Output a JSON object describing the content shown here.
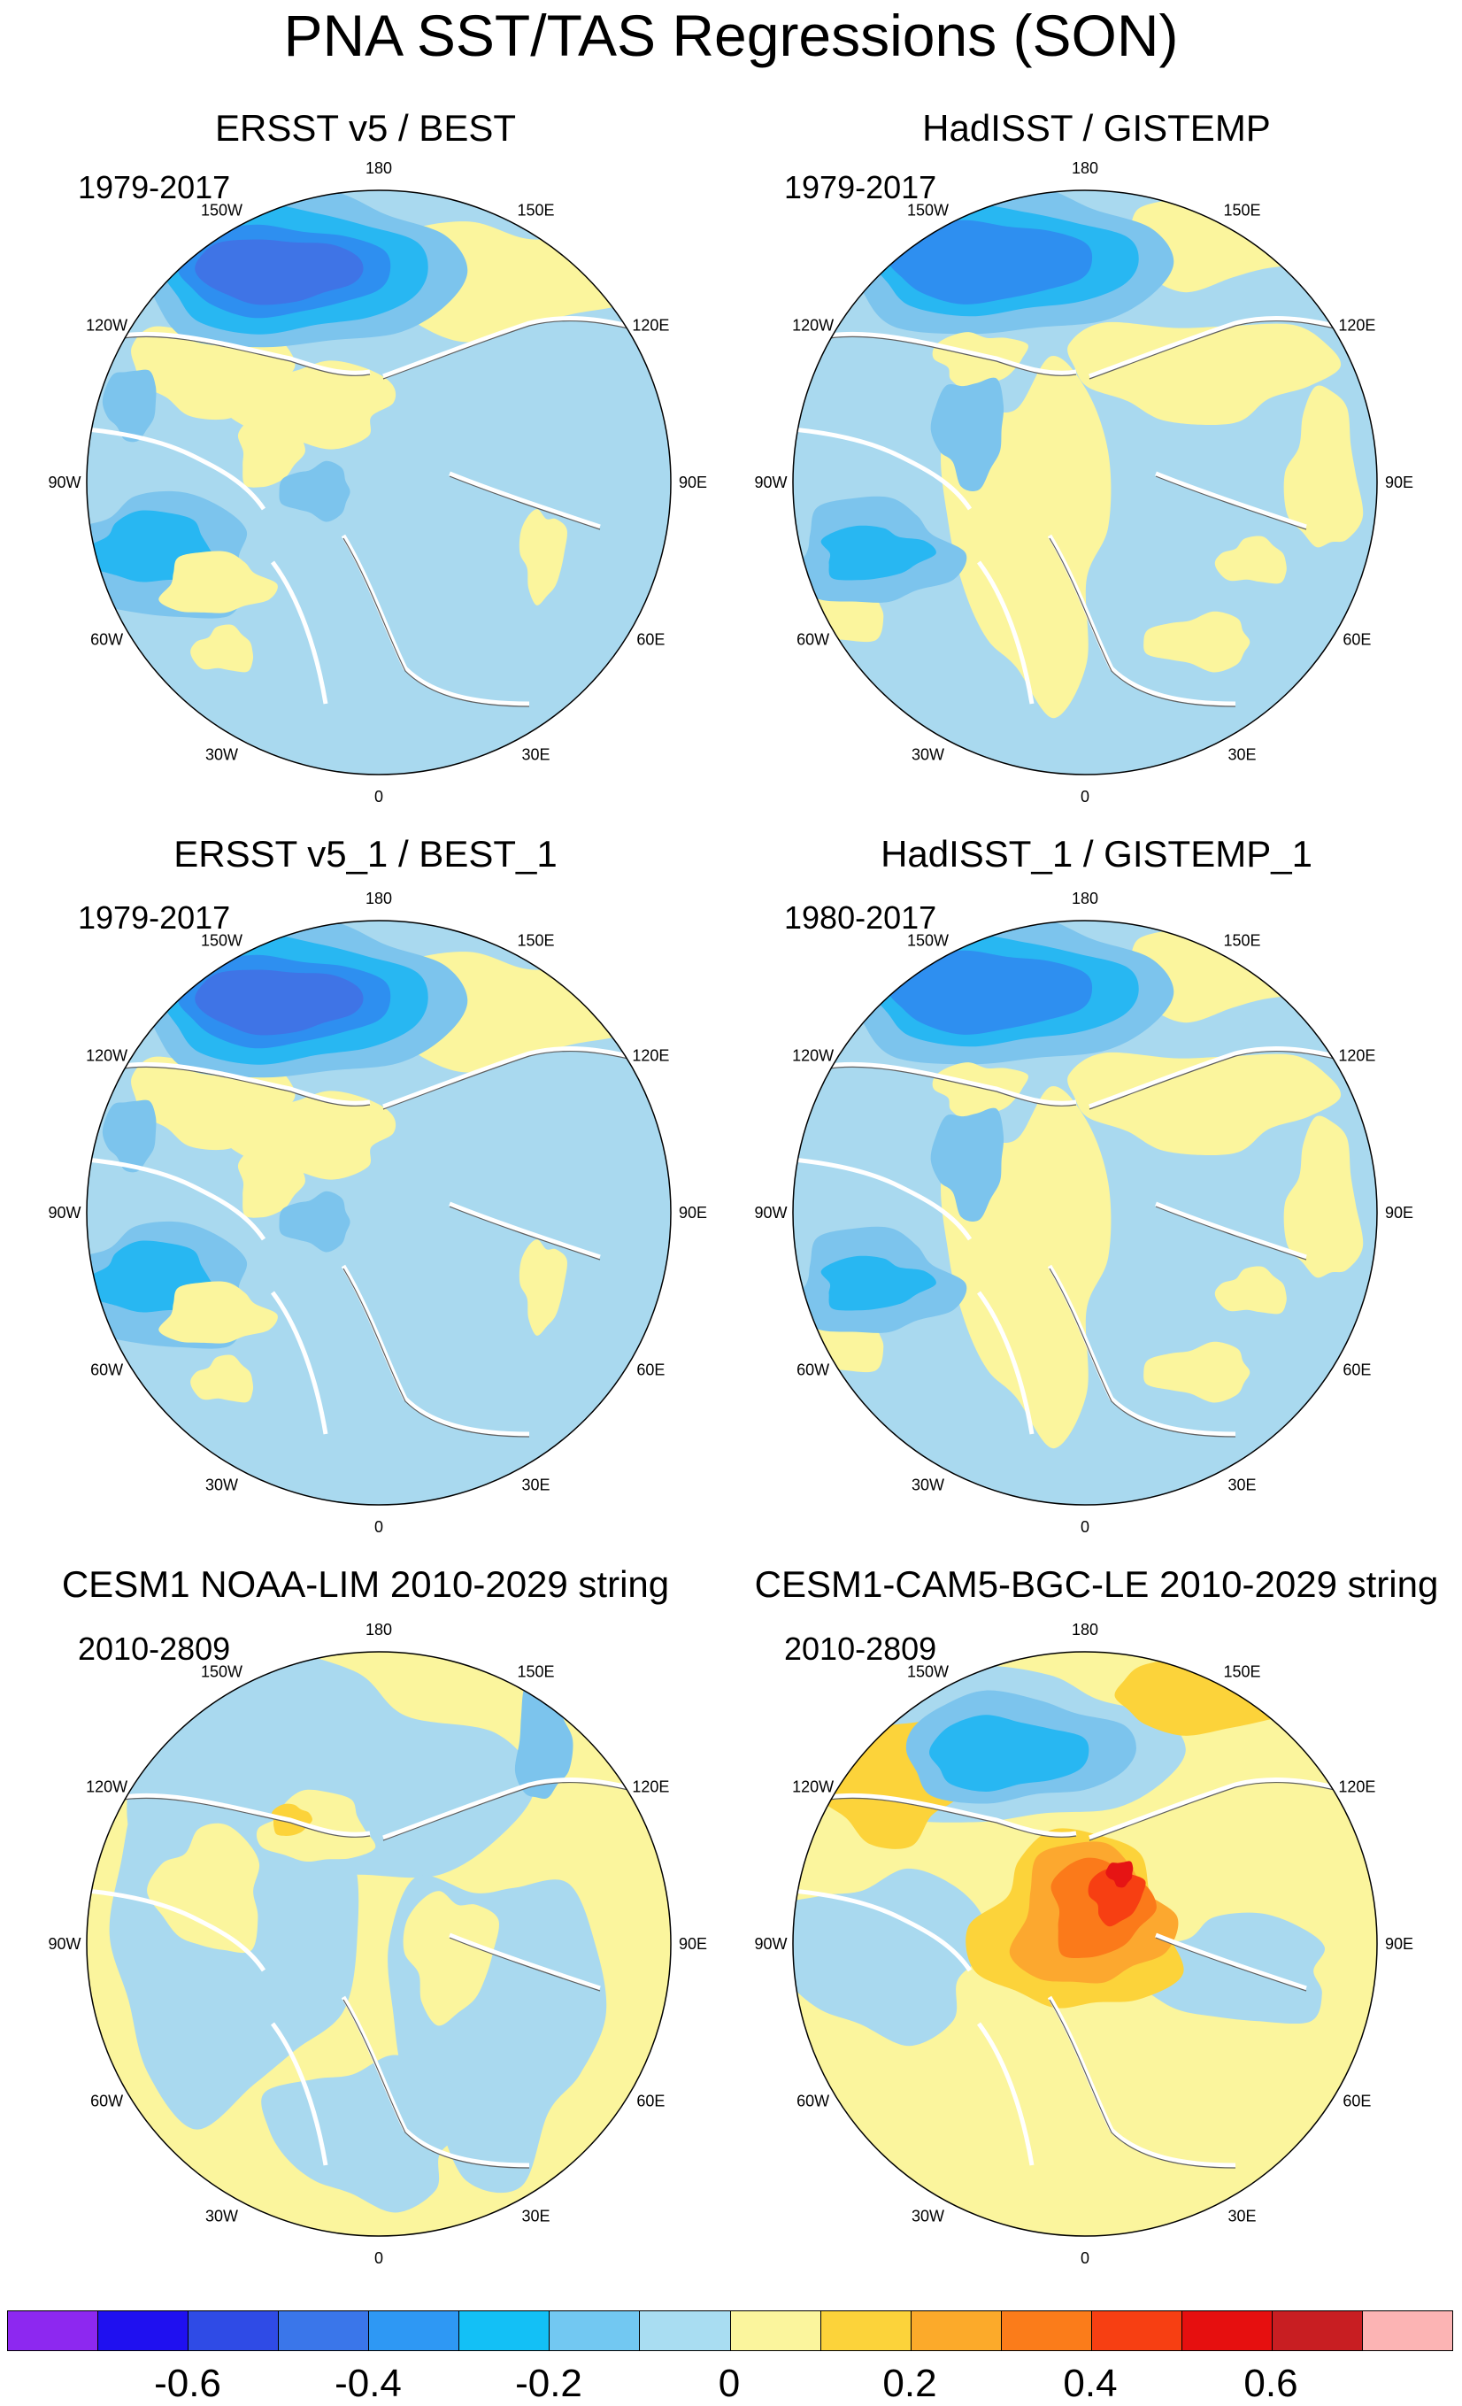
{
  "title": "PNA SST/TAS Regressions (SON)",
  "colors": {
    "ocean_light_blue": "#a9d9ef",
    "ocean_blue": "#7cc4ed",
    "cyan": "#28b7f2",
    "mid_blue": "#2e8ff0",
    "blue": "#3f74e6",
    "dark_blue": "#2c4fd6",
    "yellow": "#fbf59d",
    "gold": "#fcd33a",
    "orange": "#fca82f",
    "dark_orange": "#fb7a1a",
    "red_orange": "#f73f12",
    "red": "#e61414"
  },
  "longitude_labels": [
    "180",
    "150E",
    "120E",
    "90E",
    "60E",
    "30E",
    "0",
    "30W",
    "60W",
    "90W",
    "120W",
    "150W"
  ],
  "panels": [
    {
      "title": "ERSST v5 / BEST",
      "period": "1979-2017"
    },
    {
      "title": "HadISST / GISTEMP",
      "period": "1979-2017"
    },
    {
      "title": "ERSST v5_1 / BEST_1",
      "period": "1979-2017"
    },
    {
      "title": "HadISST_1 / GISTEMP_1",
      "period": "1980-2017"
    },
    {
      "title": "CESM1 NOAA-LIM 2010-2029 string",
      "period": "2010-2809"
    },
    {
      "title": "CESM1-CAM5-BGC-LE 2010-2029 string",
      "period": "2010-2809"
    }
  ],
  "colorbar": {
    "colors": [
      "#8d28f0",
      "#1f10f0",
      "#2f4be6",
      "#3a76ea",
      "#2e98f4",
      "#13c0f6",
      "#72c8f2",
      "#a9ddf2",
      "#fbf59d",
      "#fcd33a",
      "#fcaa2a",
      "#fb7c1a",
      "#f73f12",
      "#e60f0f",
      "#c81e22",
      "#fcb4b4"
    ],
    "tick_labels": [
      "-0.6",
      "-0.4",
      "-0.2",
      "0",
      "0.2",
      "0.4",
      "0.6"
    ]
  }
}
